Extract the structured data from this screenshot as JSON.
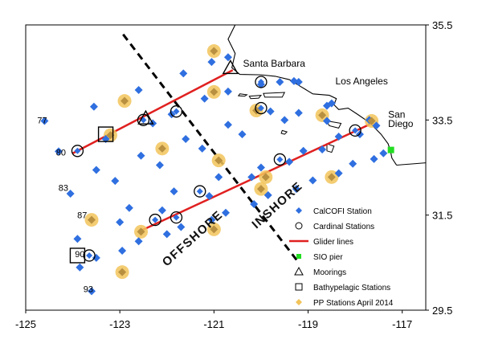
{
  "chart_data": {
    "type": "scatter",
    "xlim": [
      -125,
      -116.5
    ],
    "ylim": [
      29.5,
      35.5
    ],
    "x_ticks": [
      "-125",
      "-123",
      "-121",
      "-119",
      "-117"
    ],
    "y_ticks": [
      "35.5",
      "33.5",
      "31.5",
      "29.5"
    ],
    "places": [
      {
        "name": "Santa Barbara",
        "lon": -119.7,
        "lat": 34.42
      },
      {
        "name": "Los Angeles",
        "lon": -118.25,
        "lat": 34.05
      },
      {
        "name": "San Diego",
        "lon": -117.16,
        "lat": 32.72
      }
    ],
    "line_labels": [
      {
        "label": "77",
        "lon": -124.55,
        "lat": 33.5
      },
      {
        "label": "80",
        "lon": -124.15,
        "lat": 32.82
      },
      {
        "label": "83",
        "lon": -124.1,
        "lat": 32.08
      },
      {
        "label": "87",
        "lon": -123.7,
        "lat": 31.5
      },
      {
        "label": "90",
        "lon": -123.75,
        "lat": 30.68
      },
      {
        "label": "93",
        "lon": -123.57,
        "lat": 29.95
      }
    ],
    "zones": [
      {
        "label": "OFFSHORE",
        "lon": -121.4,
        "lat": 30.95,
        "rotate": -42
      },
      {
        "label": "INSHORE",
        "lon": -119.6,
        "lat": 31.65,
        "rotate": -42
      }
    ],
    "divider": [
      [
        -122.93,
        35.3
      ],
      [
        -119.2,
        30.5
      ]
    ],
    "legend": [
      {
        "key": "calcofi",
        "label": "CalCOFI Station"
      },
      {
        "key": "cardinal",
        "label": "Cardinal Stations"
      },
      {
        "key": "glider",
        "label": "Glider lines"
      },
      {
        "key": "sio",
        "label": "SIO pier"
      },
      {
        "key": "mooring",
        "label": "Moorings"
      },
      {
        "key": "bathy",
        "label": "Bathypelagic Stations"
      },
      {
        "key": "pp",
        "label": "PP Stations April 2014"
      }
    ],
    "colors": {
      "calcofi": "#2f6fe0",
      "pp": "#f2c45a",
      "glider": "#e02020",
      "sio": "#22dd22",
      "star": "#6ab8f0"
    },
    "series": [
      {
        "name": "CalCOFI Station",
        "points": [
          [
            -124.6,
            33.48
          ],
          [
            -123.55,
            33.78
          ],
          [
            -122.6,
            34.13
          ],
          [
            -121.65,
            34.48
          ],
          [
            -121.05,
            34.72
          ],
          [
            -120.7,
            34.82
          ],
          [
            -124.3,
            32.84
          ],
          [
            -123.3,
            33.1
          ],
          [
            -122.3,
            33.43
          ],
          [
            -121.9,
            33.62
          ],
          [
            -121.2,
            33.95
          ],
          [
            -120.7,
            34.1
          ],
          [
            -120.0,
            34.25
          ],
          [
            -119.6,
            34.3
          ],
          [
            -119.2,
            34.3
          ],
          [
            -119.3,
            34.32
          ],
          [
            -123.5,
            32.45
          ],
          [
            -122.55,
            32.75
          ],
          [
            -121.6,
            33.1
          ],
          [
            -120.7,
            33.4
          ],
          [
            -119.8,
            33.68
          ],
          [
            -119.2,
            33.65
          ],
          [
            -118.6,
            33.8
          ],
          [
            -118.5,
            33.85
          ],
          [
            -124.05,
            31.95
          ],
          [
            -123.1,
            32.22
          ],
          [
            -122.15,
            32.55
          ],
          [
            -121.25,
            32.9
          ],
          [
            -120.4,
            33.2
          ],
          [
            -119.5,
            33.5
          ],
          [
            -118.6,
            33.48
          ],
          [
            -117.7,
            33.5
          ],
          [
            -122.8,
            31.65
          ],
          [
            -121.85,
            32.0
          ],
          [
            -120.9,
            32.3
          ],
          [
            -120.0,
            32.5
          ],
          [
            -119.1,
            32.85
          ],
          [
            -118.35,
            33.15
          ],
          [
            -117.55,
            33.38
          ],
          [
            -123.9,
            31.0
          ],
          [
            -123.0,
            31.35
          ],
          [
            -122.1,
            31.6
          ],
          [
            -121.1,
            31.9
          ],
          [
            -120.2,
            32.3
          ],
          [
            -119.4,
            32.62
          ],
          [
            -118.7,
            32.88
          ],
          [
            -117.9,
            33.2
          ],
          [
            -123.5,
            30.6
          ],
          [
            -122.6,
            30.95
          ],
          [
            -121.7,
            31.25
          ],
          [
            -120.75,
            31.55
          ],
          [
            -119.85,
            31.92
          ],
          [
            -118.9,
            32.23
          ],
          [
            -118.05,
            32.58
          ],
          [
            -117.4,
            32.8
          ],
          [
            -123.85,
            30.4
          ],
          [
            -122.95,
            30.75
          ],
          [
            -122.0,
            31.1
          ],
          [
            -121.05,
            31.4
          ],
          [
            -120.15,
            31.73
          ],
          [
            -119.25,
            32.05
          ],
          [
            -118.35,
            32.38
          ],
          [
            -117.6,
            32.68
          ],
          [
            -123.6,
            29.9
          ]
        ]
      },
      {
        "name": "Cardinal Stations",
        "points": [
          [
            -120.0,
            34.3
          ],
          [
            -121.8,
            33.68
          ],
          [
            -120.0,
            33.75
          ],
          [
            -123.9,
            32.85
          ],
          [
            -122.5,
            33.5
          ],
          [
            -118.0,
            33.28
          ],
          [
            -122.25,
            31.4
          ],
          [
            -121.3,
            32.0
          ],
          [
            -119.6,
            32.67
          ],
          [
            -121.8,
            31.45
          ],
          [
            -123.65,
            30.65
          ]
        ]
      },
      {
        "name": "PP Stations April 2014",
        "points": [
          [
            -121.0,
            34.95
          ],
          [
            -121.0,
            34.09
          ],
          [
            -120.1,
            33.7
          ],
          [
            -122.9,
            33.9
          ],
          [
            -118.7,
            33.6
          ],
          [
            -123.2,
            33.18
          ],
          [
            -122.1,
            32.9
          ],
          [
            -120.9,
            32.65
          ],
          [
            -119.9,
            32.3
          ],
          [
            -118.5,
            32.3
          ],
          [
            -117.65,
            33.48
          ],
          [
            -123.6,
            31.4
          ],
          [
            -122.55,
            31.15
          ],
          [
            -121.0,
            31.2
          ],
          [
            -122.95,
            30.3
          ],
          [
            -120.0,
            32.05
          ]
        ]
      },
      {
        "name": "Glider lines",
        "lines": [
          [
            [
              -124.0,
              32.8
            ],
            [
              -120.6,
              34.55
            ]
          ],
          [
            [
              -122.6,
              31.15
            ],
            [
              -117.6,
              33.45
            ]
          ]
        ]
      },
      {
        "name": "SIO pier",
        "points": [
          [
            -117.24,
            32.87
          ]
        ]
      },
      {
        "name": "Moorings",
        "points": [
          [
            -122.45,
            33.52
          ],
          [
            -120.65,
            34.58
          ]
        ]
      },
      {
        "name": "Bathypelagic Stations",
        "points": [
          [
            -123.3,
            33.2
          ],
          [
            -123.9,
            30.65
          ]
        ]
      }
    ],
    "coastline": [
      [
        -120.55,
        35.5
      ],
      [
        -120.7,
        35.2
      ],
      [
        -120.55,
        34.9
      ],
      [
        -120.62,
        34.6
      ],
      [
        -120.45,
        34.46
      ],
      [
        -120.0,
        34.45
      ],
      [
        -119.7,
        34.42
      ],
      [
        -119.4,
        34.35
      ],
      [
        -119.15,
        34.2
      ],
      [
        -118.9,
        34.05
      ],
      [
        -118.55,
        34.02
      ],
      [
        -118.4,
        33.95
      ],
      [
        -118.45,
        33.82
      ],
      [
        -118.35,
        33.72
      ],
      [
        -118.15,
        33.75
      ],
      [
        -117.95,
        33.62
      ],
      [
        -117.7,
        33.45
      ],
      [
        -117.45,
        33.2
      ],
      [
        -117.3,
        33.0
      ],
      [
        -117.25,
        32.85
      ],
      [
        -117.22,
        32.7
      ],
      [
        -117.12,
        32.55
      ]
    ],
    "border": [
      [
        -117.12,
        32.55
      ],
      [
        -116.5,
        32.6
      ]
    ],
    "islands": [
      [
        [
          -120.45,
          34.05
        ],
        [
          -120.3,
          34.03
        ],
        [
          -120.35,
          34.0
        ],
        [
          -120.48,
          34.01
        ]
      ],
      [
        [
          -120.25,
          34.0
        ],
        [
          -120.0,
          34.02
        ],
        [
          -120.05,
          33.96
        ],
        [
          -120.22,
          33.95
        ]
      ],
      [
        [
          -119.95,
          34.06
        ],
        [
          -119.5,
          34.08
        ],
        [
          -119.55,
          33.98
        ],
        [
          -119.92,
          33.98
        ]
      ],
      [
        [
          -118.6,
          33.48
        ],
        [
          -118.3,
          33.43
        ],
        [
          -118.35,
          33.33
        ],
        [
          -118.55,
          33.38
        ]
      ],
      [
        [
          -118.6,
          33.0
        ],
        [
          -118.45,
          32.95
        ],
        [
          -118.5,
          32.82
        ],
        [
          -118.6,
          32.85
        ]
      ],
      [
        [
          -119.55,
          33.28
        ],
        [
          -119.45,
          33.25
        ],
        [
          -119.5,
          33.2
        ],
        [
          -119.57,
          33.22
        ]
      ]
    ]
  }
}
